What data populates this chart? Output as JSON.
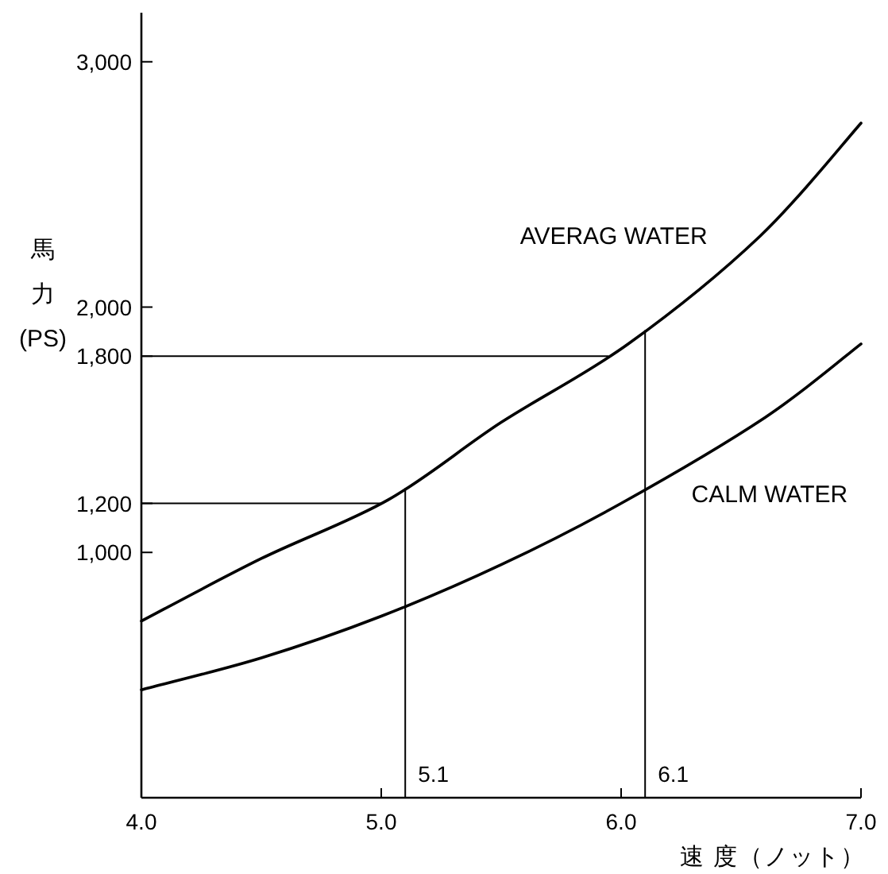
{
  "chart_data": {
    "type": "line",
    "xlabel": "速 度（ノット）",
    "ylabel": "馬力\n(PS)",
    "xlim": [
      4.0,
      7.0
    ],
    "ylim": [
      0,
      3200
    ],
    "xticks": [
      {
        "value": 4,
        "label": "4.0"
      },
      {
        "value": 5,
        "label": "5.0"
      },
      {
        "value": 6,
        "label": "6.0"
      },
      {
        "value": 7,
        "label": "7.0"
      }
    ],
    "yticks": [
      {
        "value": 1000,
        "label": "1,000"
      },
      {
        "value": 1200,
        "label": "1,200"
      },
      {
        "value": 1800,
        "label": "1,800"
      },
      {
        "value": 2000,
        "label": "2,000"
      },
      {
        "value": 3000,
        "label": "3,000"
      }
    ],
    "series": [
      {
        "name": "AVERAG WATER",
        "color": "#000000",
        "x": [
          4.0,
          4.5,
          5.03,
          5.5,
          6.03,
          6.58,
          7.0
        ],
        "values": [
          720,
          975,
          1215,
          1530,
          1850,
          2290,
          2750
        ]
      },
      {
        "name": "CALM WATER",
        "color": "#000000",
        "x": [
          4.0,
          4.5,
          5.0,
          5.5,
          6.0,
          6.6,
          7.0
        ],
        "values": [
          440,
          570,
          740,
          950,
          1200,
          1550,
          1850
        ]
      }
    ],
    "ref_lines": [
      {
        "axis": "x",
        "value": 5.1,
        "label": "5.1"
      },
      {
        "axis": "x",
        "value": 6.1,
        "label": "6.1"
      },
      {
        "axis": "y",
        "value": 1200
      },
      {
        "axis": "y",
        "value": 1800
      }
    ],
    "grid": false,
    "legend": false,
    "marker": "none",
    "line_style": "solid"
  }
}
